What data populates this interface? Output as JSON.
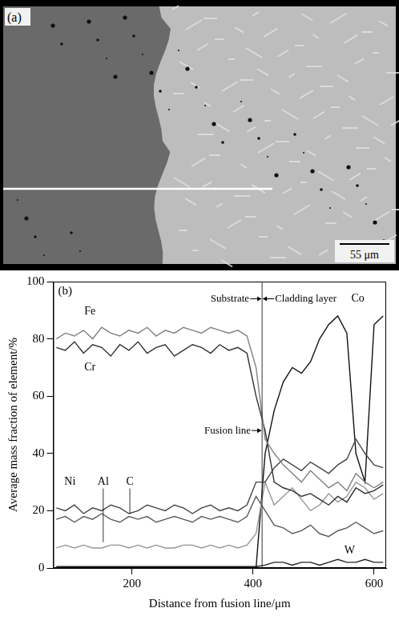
{
  "image_panel": {
    "label": "(a)",
    "scale_bar": "55 μm"
  },
  "chart_data": {
    "type": "line",
    "label": "(b)",
    "x_label": "Distance from fusion line/μm",
    "y_label": "Average mass fraction of element/%",
    "xlim": [
      70,
      620
    ],
    "xticks": [
      200,
      400,
      600
    ],
    "ylim": [
      0,
      100
    ],
    "yticks": [
      0,
      20,
      40,
      60,
      80,
      100
    ],
    "grid": false,
    "vline": {
      "x": 415,
      "label": "Fusion line"
    },
    "region_labels": [
      "Substrate",
      "Cladding layer"
    ],
    "x": [
      75,
      90,
      105,
      120,
      135,
      150,
      165,
      180,
      195,
      210,
      225,
      240,
      255,
      270,
      285,
      300,
      315,
      330,
      345,
      360,
      375,
      390,
      405,
      420,
      435,
      450,
      465,
      480,
      495,
      510,
      525,
      540,
      555,
      570,
      585,
      600,
      615
    ],
    "series": [
      {
        "name": "Fe",
        "color": "#808080",
        "values": [
          80,
          82,
          81,
          83,
          80,
          84,
          82,
          81,
          83,
          82,
          84,
          81,
          83,
          82,
          84,
          83,
          82,
          84,
          83,
          82,
          83,
          81,
          70,
          45,
          40,
          36,
          33,
          30,
          34,
          31,
          28,
          30,
          27,
          33,
          30,
          28,
          30
        ]
      },
      {
        "name": "Cr",
        "color": "#303030",
        "values": [
          77,
          76,
          79,
          75,
          78,
          77,
          74,
          78,
          76,
          79,
          75,
          77,
          78,
          74,
          76,
          78,
          77,
          75,
          78,
          76,
          77,
          75,
          60,
          48,
          30,
          28,
          27,
          25,
          26,
          24,
          22,
          25,
          23,
          28,
          26,
          27,
          29
        ]
      },
      {
        "name": "Ni",
        "color": "#454545",
        "values": [
          21,
          20,
          22,
          19,
          21,
          20,
          22,
          21,
          19,
          20,
          22,
          21,
          20,
          22,
          21,
          19,
          21,
          22,
          20,
          21,
          20,
          22,
          30,
          30,
          35,
          38,
          36,
          34,
          37,
          35,
          33,
          36,
          38,
          45,
          40,
          36,
          35
        ]
      },
      {
        "name": "Al",
        "color": "#959595",
        "values": [
          7,
          8,
          7,
          8,
          7,
          7,
          8,
          8,
          7,
          8,
          7,
          8,
          7,
          7,
          8,
          8,
          7,
          8,
          7,
          8,
          7,
          8,
          12,
          30,
          22,
          25,
          28,
          24,
          20,
          22,
          26,
          23,
          25,
          30,
          28,
          24,
          26
        ]
      },
      {
        "name": "C",
        "color": "#5a5a5a",
        "values": [
          17,
          18,
          16,
          18,
          17,
          19,
          17,
          16,
          18,
          17,
          18,
          16,
          17,
          18,
          17,
          16,
          18,
          17,
          18,
          17,
          16,
          18,
          25,
          20,
          15,
          14,
          12,
          13,
          15,
          12,
          11,
          13,
          14,
          16,
          14,
          12,
          13
        ]
      },
      {
        "name": "Co",
        "color": "#111111",
        "values": [
          0,
          0,
          0,
          0,
          0,
          0,
          0,
          0,
          0,
          0,
          0,
          0,
          0,
          0,
          0,
          0,
          0,
          0,
          0,
          0,
          0,
          0,
          0,
          40,
          55,
          65,
          70,
          68,
          72,
          80,
          85,
          88,
          82,
          40,
          30,
          85,
          88
        ]
      },
      {
        "name": "W",
        "color": "#222222",
        "values": [
          0.5,
          0.5,
          0.5,
          0.5,
          0.5,
          0.5,
          0.5,
          0.5,
          0.5,
          0.5,
          0.5,
          0.5,
          0.5,
          0.5,
          0.5,
          0.5,
          0.5,
          0.5,
          0.5,
          0.5,
          0.5,
          0.5,
          0.5,
          1,
          2,
          2,
          1,
          2,
          2,
          1,
          2,
          3,
          2,
          2,
          3,
          2,
          2
        ]
      }
    ]
  }
}
